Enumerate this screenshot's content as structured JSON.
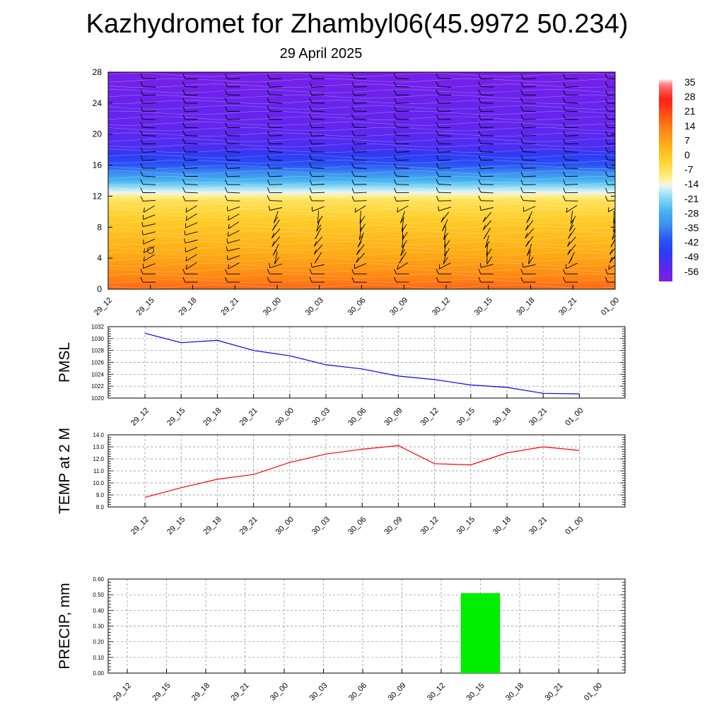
{
  "title": "Kazhydromet for Zhambyl06(45.9972 50.234)",
  "subtitle": "29 April 2025",
  "time_labels": [
    "29_12",
    "29_15",
    "29_18",
    "29_21",
    "30_00",
    "30_03",
    "30_06",
    "30_09",
    "30_12",
    "30_15",
    "30_18",
    "30_21",
    "01_00"
  ],
  "colors": {
    "pmsl_line": "#0000ff",
    "temp_line": "#ff0000",
    "precip_bar": "#00ee00",
    "grid": "#888888"
  },
  "chart_data": [
    {
      "type": "heatmap",
      "y_ticks": [
        "0",
        "4",
        "8",
        "12",
        "16",
        "20",
        "24",
        "28"
      ],
      "ylim": [
        0,
        28
      ],
      "colorbar": {
        "labels": [
          "35",
          "28",
          "21",
          "14",
          "7",
          "0",
          "-7",
          "-14",
          "-21",
          "-28",
          "-35",
          "-42",
          "-49",
          "-56"
        ],
        "range": [
          -60,
          38
        ]
      },
      "temperature_profile": [
        {
          "z": 0,
          "t": 18
        },
        {
          "z": 2,
          "t": 12
        },
        {
          "z": 5,
          "t": 6
        },
        {
          "z": 9,
          "t": 0
        },
        {
          "z": 11.5,
          "t": -6
        },
        {
          "z": 12.8,
          "t": -16
        },
        {
          "z": 14,
          "t": -26
        },
        {
          "z": 16,
          "t": -40
        },
        {
          "z": 18,
          "t": -50
        },
        {
          "z": 21,
          "t": -55
        },
        {
          "z": 24,
          "t": -56
        },
        {
          "z": 28,
          "t": -59
        }
      ],
      "wind_barbs": true,
      "legend": "right colorbar"
    },
    {
      "type": "line",
      "ylabel": "PMSL",
      "y_ticks": [
        "1020",
        "1022",
        "1024",
        "1026",
        "1028",
        "1030",
        "1032"
      ],
      "ylim": [
        1020,
        1032
      ],
      "x": [
        "29_12",
        "29_15",
        "29_18",
        "29_21",
        "30_00",
        "30_03",
        "30_06",
        "30_09",
        "30_12",
        "30_15",
        "30_18",
        "30_21",
        "01_00"
      ],
      "values": [
        1030.9,
        1029.3,
        1029.7,
        1028.0,
        1027.1,
        1025.6,
        1024.9,
        1023.7,
        1023.1,
        1022.2,
        1021.8,
        1020.8,
        1020.7
      ],
      "grid": true
    },
    {
      "type": "line",
      "ylabel": "TEMP at 2 M",
      "y_ticks": [
        "8.0",
        "9.0",
        "10.0",
        "11.0",
        "12.0",
        "13.0",
        "14.0"
      ],
      "ylim": [
        8.0,
        14.0
      ],
      "x": [
        "29_12",
        "29_15",
        "29_18",
        "29_21",
        "30_00",
        "30_03",
        "30_06",
        "30_09",
        "30_12",
        "30_15",
        "30_18",
        "30_21",
        "01_00"
      ],
      "values": [
        8.8,
        9.6,
        10.3,
        10.7,
        11.7,
        12.4,
        12.8,
        13.1,
        11.6,
        11.5,
        12.5,
        13.0,
        12.7
      ],
      "grid": true
    },
    {
      "type": "bar",
      "ylabel": "PRECIP, mm",
      "y_ticks": [
        "0.00",
        "0.10",
        "0.20",
        "0.30",
        "0.40",
        "0.50",
        "0.60"
      ],
      "ylim": [
        0,
        0.6
      ],
      "categories": [
        "29_12",
        "29_15",
        "29_18",
        "29_21",
        "30_00",
        "30_03",
        "30_06",
        "30_09",
        "30_12",
        "30_15",
        "30_18",
        "30_21",
        "01_00"
      ],
      "values": [
        0,
        0,
        0,
        0,
        0,
        0,
        0,
        0,
        0,
        0.51,
        0,
        0,
        0
      ],
      "grid": true
    }
  ]
}
